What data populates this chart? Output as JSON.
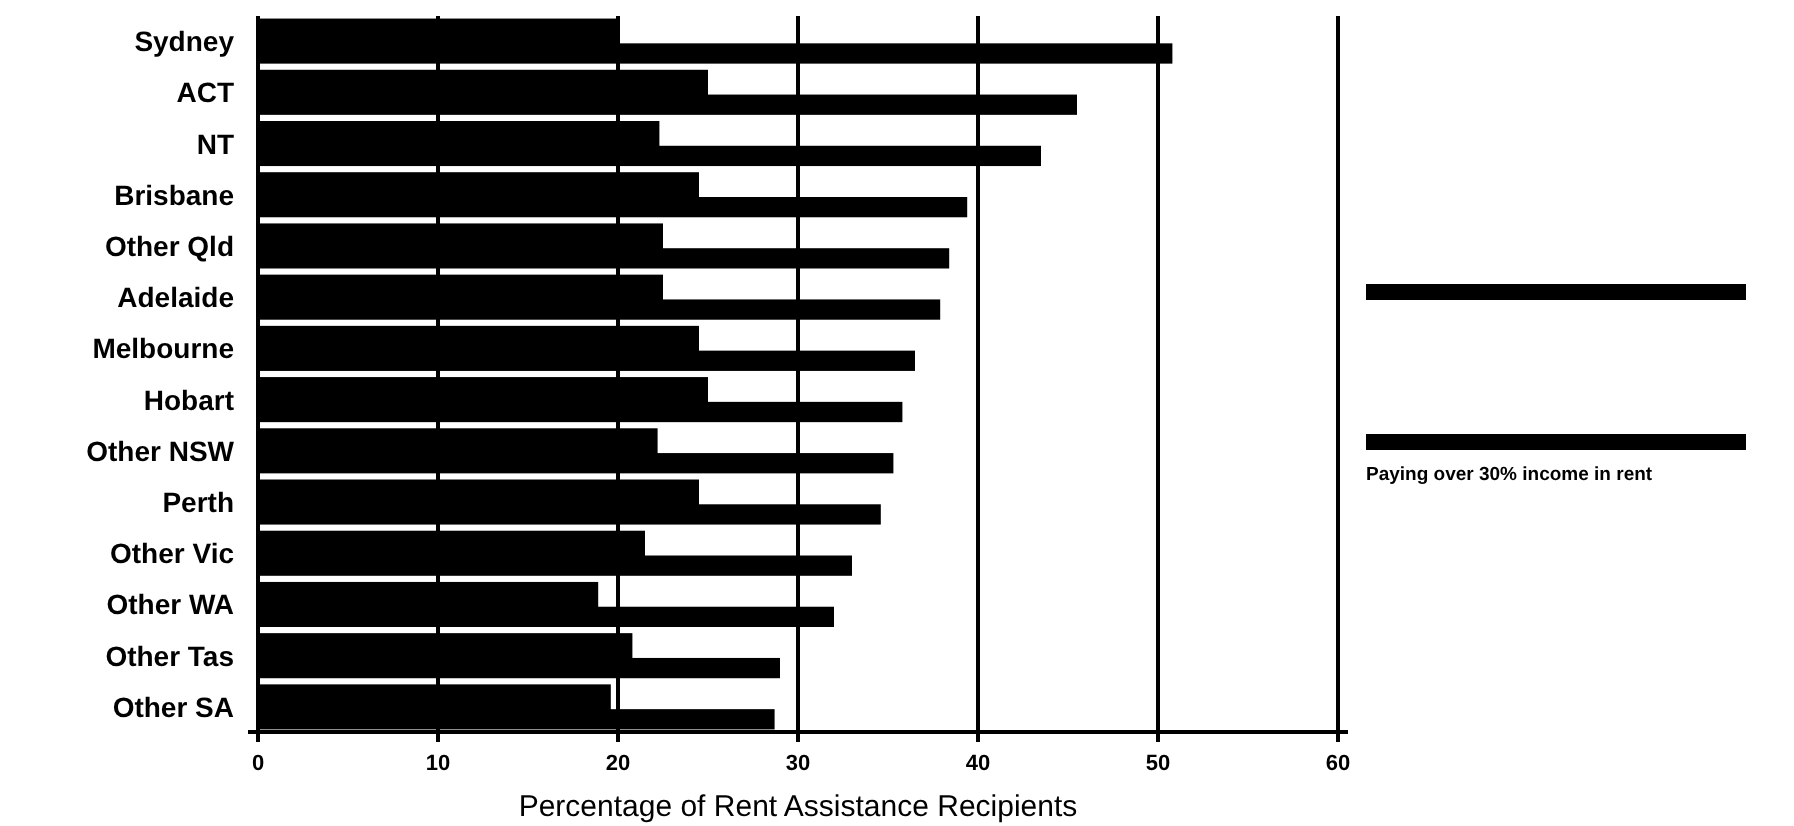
{
  "chart_data": {
    "type": "bar",
    "orientation": "horizontal",
    "xlabel": "Percentage of Rent Assistance Recipients",
    "categories": [
      "Sydney",
      "ACT",
      "NT",
      "Brisbane",
      "Other Qld",
      "Adelaide",
      "Melbourne",
      "Hobart",
      "Other NSW",
      "Perth",
      "Other Vic",
      "Other WA",
      "Other Tas",
      "Other SA"
    ],
    "series": [
      {
        "color": "#000000",
        "values": [
          20,
          25,
          22.3,
          24.5,
          22.5,
          22.5,
          24.5,
          25,
          22.2,
          24.5,
          21.5,
          18.9,
          20.8,
          19.6
        ]
      },
      {
        "name": "Paying over 30% income in rent",
        "color": "#000000",
        "values": [
          50.8,
          45.5,
          43.5,
          39.4,
          38.4,
          37.9,
          36.5,
          35.8,
          35.3,
          34.6,
          33,
          32,
          29,
          28.7
        ]
      }
    ],
    "xlim": [
      0,
      60
    ],
    "xticks": [
      0,
      10,
      20,
      30,
      40,
      50,
      60
    ],
    "grid": "x",
    "legend": "right"
  }
}
